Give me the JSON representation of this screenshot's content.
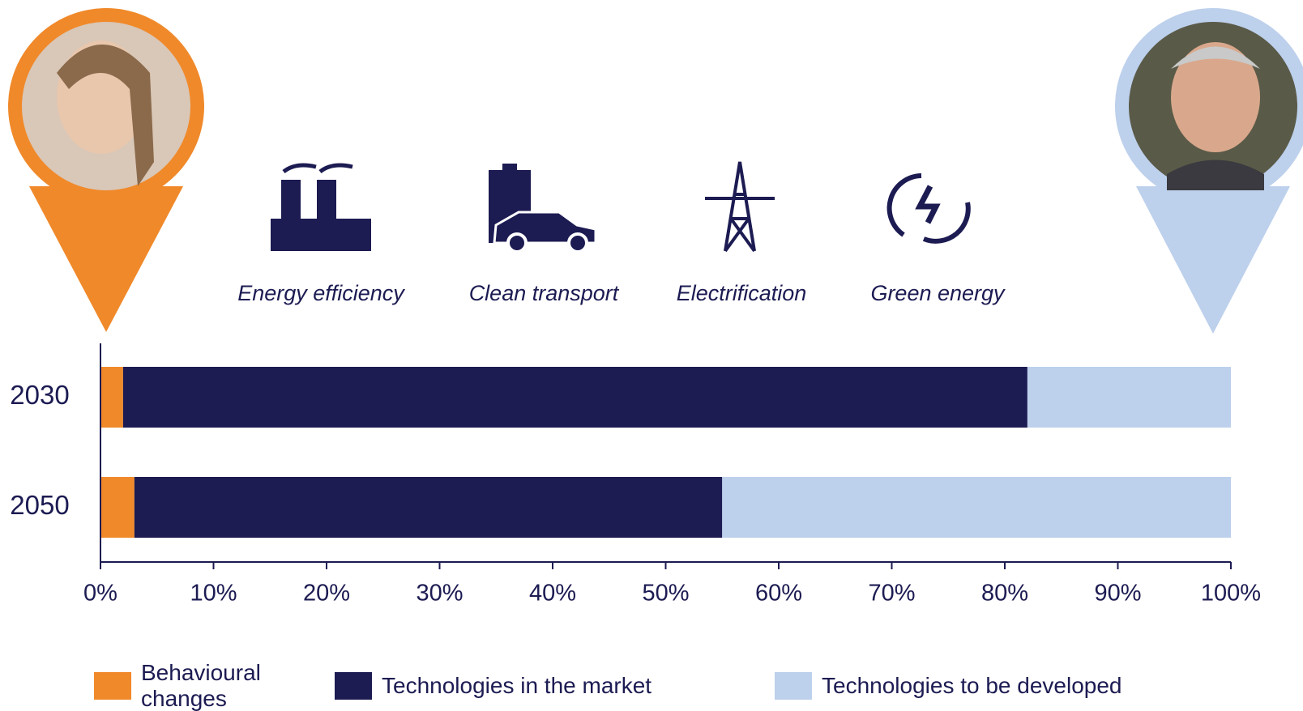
{
  "chart_data": {
    "type": "stacked-barh",
    "categories": [
      "2030",
      "2050"
    ],
    "series": [
      {
        "name": "Behavioural changes",
        "color": "#f0892a",
        "values": [
          2,
          3
        ]
      },
      {
        "name": "Technologies in the market",
        "color": "#1c1b52",
        "values": [
          80,
          52
        ]
      },
      {
        "name": "Technologies to be developed",
        "color": "#bdd0ec",
        "values": [
          18,
          45
        ]
      }
    ],
    "xlim": [
      0,
      100
    ],
    "xticks": [
      {
        "value": 0,
        "label": "0%"
      },
      {
        "value": 10,
        "label": "10%"
      },
      {
        "value": 20,
        "label": "20%"
      },
      {
        "value": 30,
        "label": "30%"
      },
      {
        "value": 40,
        "label": "40%"
      },
      {
        "value": 50,
        "label": "50%"
      },
      {
        "value": 60,
        "label": "60%"
      },
      {
        "value": 70,
        "label": "70%"
      },
      {
        "value": 80,
        "label": "80%"
      },
      {
        "value": 90,
        "label": "90%"
      },
      {
        "value": 100,
        "label": "100%"
      }
    ],
    "annotations": [
      "Energy efficiency",
      "Clean transport",
      "Electrification",
      "Green energy"
    ]
  }
}
